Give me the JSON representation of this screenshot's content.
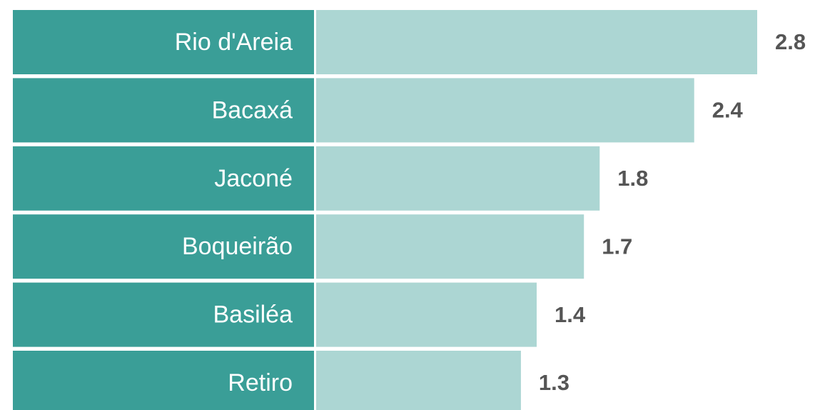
{
  "chart_data": {
    "type": "bar",
    "orientation": "horizontal",
    "categories": [
      "Rio d'Areia",
      "Bacaxá",
      "Jaconé",
      "Boqueirão",
      "Basiléa",
      "Retiro"
    ],
    "values": [
      2.8,
      2.4,
      1.8,
      1.7,
      1.4,
      1.3
    ],
    "color": "#acd6d3",
    "label_color": "#3a9e97"
  }
}
